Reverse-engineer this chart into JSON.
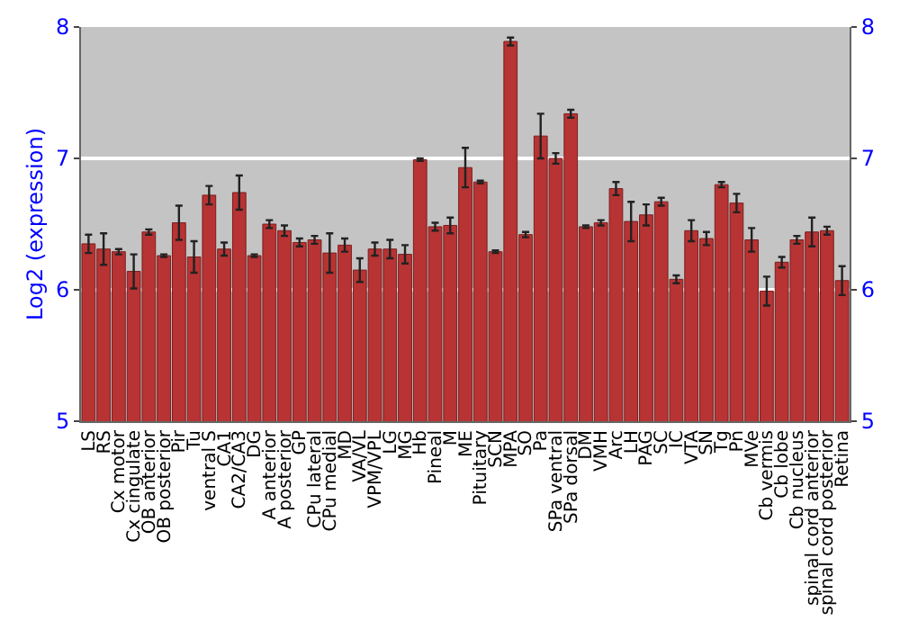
{
  "chart_data": {
    "type": "bar",
    "ylabel": "Log2 (expression)",
    "categories": [
      "LS",
      "RS",
      "Cx motor",
      "Cx cingulate",
      "OB anterior",
      "OB posterior",
      "Pir",
      "Tu",
      "ventral S",
      "CA1",
      "CA2/CA3",
      "DG",
      "A anterior",
      "A posterior",
      "GP",
      "CPu lateral",
      "CPu medial",
      "MD",
      "VA/VL",
      "VPM/VPL",
      "LG",
      "MG",
      "Hb",
      "Pineal",
      "M",
      "ME",
      "Pituitary",
      "SCN",
      "MPA",
      "SO",
      "Pa",
      "SPa ventral",
      "SPa dorsal",
      "DM",
      "VMH",
      "Arc",
      "LH",
      "PAG",
      "SC",
      "IC",
      "VTA",
      "SN",
      "Tg",
      "Pn",
      "MVe",
      "Cb vermis",
      "Cb lobe",
      "Cb nucleus",
      "spinal cord anterior",
      "spinal cord posterior",
      "Retina"
    ],
    "values": [
      6.35,
      6.31,
      6.29,
      6.14,
      6.44,
      6.26,
      6.51,
      6.25,
      6.72,
      6.31,
      6.74,
      6.26,
      6.5,
      6.45,
      6.36,
      6.38,
      6.28,
      6.34,
      6.15,
      6.31,
      6.31,
      6.27,
      6.99,
      6.48,
      6.49,
      6.93,
      6.82,
      6.29,
      7.89,
      6.42,
      7.17,
      7.0,
      7.34,
      6.48,
      6.51,
      6.77,
      6.52,
      6.57,
      6.67,
      6.08,
      6.45,
      6.39,
      6.8,
      6.66,
      6.38,
      5.99,
      6.21,
      6.38,
      6.44,
      6.45,
      6.07
    ],
    "errors": [
      0.07,
      0.12,
      0.02,
      0.13,
      0.02,
      0.01,
      0.13,
      0.12,
      0.07,
      0.05,
      0.13,
      0.01,
      0.03,
      0.04,
      0.03,
      0.03,
      0.15,
      0.05,
      0.09,
      0.05,
      0.07,
      0.07,
      0.01,
      0.03,
      0.06,
      0.15,
      0.01,
      0.01,
      0.03,
      0.02,
      0.17,
      0.04,
      0.03,
      0.01,
      0.02,
      0.05,
      0.15,
      0.08,
      0.03,
      0.03,
      0.08,
      0.05,
      0.02,
      0.07,
      0.09,
      0.11,
      0.04,
      0.03,
      0.11,
      0.03,
      0.11
    ],
    "color": "#b83333",
    "ylim": [
      5,
      8
    ],
    "yticks": [
      5,
      6,
      7,
      8
    ],
    "y2lim": [
      5,
      8
    ],
    "y2ticks": [
      5,
      6,
      7,
      8
    ],
    "grid": "y"
  }
}
